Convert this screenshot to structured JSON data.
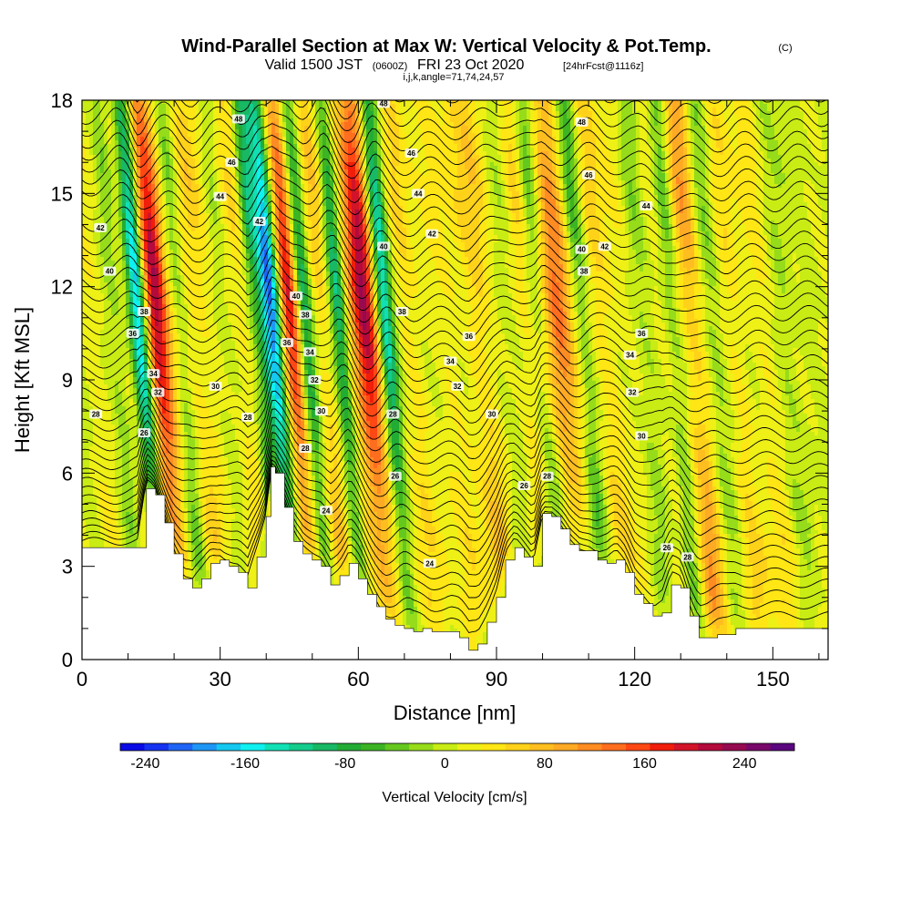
{
  "titles": {
    "main": "Wind-Parallel Section at Max W: Vertical Velocity & Pot.Temp.",
    "copyright": "(C)",
    "valid_prefix": "Valid 1500 JST",
    "utc": "(0600Z)",
    "date": "FRI 23 Oct 2020",
    "forecast": "[24hrFcst@1116z]",
    "indices": "i,j,k,angle=71,74,24,57"
  },
  "chart_data": {
    "type": "heatmap",
    "title": "Wind-Parallel Section at Max W: Vertical Velocity & Pot.Temp.",
    "xlabel": "Distance [nm]",
    "ylabel": "Height [Kft MSL]",
    "xlim": [
      0,
      162
    ],
    "ylim": [
      0,
      18
    ],
    "x_ticks": [
      "0",
      "30",
      "60",
      "90",
      "120",
      "150"
    ],
    "y_ticks": [
      "0",
      "3",
      "6",
      "9",
      "12",
      "15",
      "18"
    ],
    "x_tick_values": [
      0,
      30,
      60,
      90,
      120,
      150
    ],
    "y_tick_values": [
      0,
      3,
      6,
      9,
      12,
      15,
      18
    ],
    "colorbar": {
      "label": "Vertical Velocity [cm/s]",
      "tick_labels": [
        "-240",
        "-160",
        "-80",
        "0",
        "80",
        "160",
        "240"
      ],
      "tick_values": [
        -240,
        -160,
        -80,
        0,
        80,
        160,
        240
      ],
      "range": [
        -260,
        280
      ],
      "colors": [
        "#0a0ae6",
        "#1432f0",
        "#1e64f5",
        "#1e96f5",
        "#14c8f0",
        "#0ff0f0",
        "#10e0b4",
        "#14cc8c",
        "#18b864",
        "#22ac34",
        "#3cb424",
        "#64c81e",
        "#96dc1a",
        "#c8ec14",
        "#eef016",
        "#ffe614",
        "#ffd21a",
        "#ffbe20",
        "#ffaa24",
        "#ff8c22",
        "#ff6e1e",
        "#ff4814",
        "#f01e0a",
        "#d21428",
        "#b40a3c",
        "#960a50",
        "#78086a",
        "#5a067e"
      ]
    },
    "terrain_x_nm": [
      0,
      12,
      14,
      16,
      18,
      20,
      22,
      24,
      26,
      28,
      30,
      32,
      34,
      36,
      38,
      40,
      41,
      42,
      44,
      46,
      48,
      50,
      52,
      54,
      56,
      58,
      60,
      62,
      64,
      66,
      68,
      70,
      72,
      74,
      76,
      78,
      80,
      82,
      84,
      86,
      88,
      90,
      92,
      94,
      96,
      98,
      100,
      102,
      104,
      106,
      108,
      110,
      112,
      114,
      116,
      118,
      120,
      122,
      124,
      126,
      128,
      130,
      132,
      134,
      136,
      138,
      140,
      142,
      144,
      146,
      148,
      150,
      152,
      154,
      156,
      158,
      160,
      162
    ],
    "terrain_kft": [
      3.6,
      3.6,
      5.5,
      5.3,
      4.4,
      3.4,
      2.6,
      2.3,
      2.6,
      3.1,
      3.2,
      3.0,
      2.8,
      2.3,
      3.3,
      4.6,
      6.2,
      6.0,
      4.9,
      3.8,
      3.4,
      3.2,
      3.0,
      2.4,
      2.7,
      3.1,
      2.6,
      2.1,
      1.7,
      1.3,
      1.1,
      1.0,
      0.9,
      1.0,
      0.9,
      0.9,
      0.9,
      0.7,
      0.3,
      0.5,
      1.2,
      2.0,
      3.2,
      3.6,
      3.3,
      3.0,
      4.7,
      4.6,
      4.2,
      3.7,
      3.5,
      3.5,
      3.2,
      3.1,
      3.2,
      2.8,
      2.1,
      1.8,
      1.4,
      1.5,
      2.4,
      2.3,
      1.4,
      0.7,
      0.7,
      0.8,
      0.8,
      1.0,
      1.0,
      1.0,
      1.0,
      1.0,
      1.0,
      1.0,
      1.0,
      1.0,
      1.0,
      1.0
    ],
    "vertical_velocity_bands": [
      {
        "x": 6,
        "w": 3,
        "base": 20
      },
      {
        "x": 10,
        "w": 2,
        "base": -40
      },
      {
        "x": 13,
        "w": 2,
        "base": 30
      },
      {
        "x": 15,
        "w": 2,
        "base": -180
      },
      {
        "x": 19,
        "w": 2.8,
        "base": 190
      },
      {
        "x": 24,
        "w": 2,
        "base": -50
      },
      {
        "x": 28,
        "w": 3,
        "base": 55
      },
      {
        "x": 33,
        "w": 2,
        "base": -25
      },
      {
        "x": 37,
        "w": 3,
        "base": 40
      },
      {
        "x": 40.5,
        "w": 1.8,
        "base": -90
      },
      {
        "x": 44,
        "w": 2.2,
        "base": -200
      },
      {
        "x": 48,
        "w": 2.4,
        "base": 175
      },
      {
        "x": 51,
        "w": 1.8,
        "base": -120
      },
      {
        "x": 55,
        "w": 2.2,
        "base": 60
      },
      {
        "x": 58.5,
        "w": 1.6,
        "base": -110
      },
      {
        "x": 64,
        "w": 2.8,
        "base": 205
      },
      {
        "x": 68.5,
        "w": 1.8,
        "base": -150
      },
      {
        "x": 73,
        "w": 3,
        "base": 35
      },
      {
        "x": 78,
        "w": 3,
        "base": 15
      },
      {
        "x": 84,
        "w": 3.5,
        "base": 30
      },
      {
        "x": 90,
        "w": 3,
        "base": 55
      },
      {
        "x": 95,
        "w": 2.5,
        "base": -25
      },
      {
        "x": 99,
        "w": 2.5,
        "base": 55
      },
      {
        "x": 102,
        "w": 2.2,
        "base": -80
      },
      {
        "x": 106,
        "w": 3.5,
        "base": 120
      },
      {
        "x": 111,
        "w": 2.2,
        "base": -70
      },
      {
        "x": 115,
        "w": 3,
        "base": 40
      },
      {
        "x": 120,
        "w": 3,
        "base": 25
      },
      {
        "x": 124,
        "w": 2.5,
        "base": -35
      },
      {
        "x": 128,
        "w": 2.5,
        "base": 20
      },
      {
        "x": 131,
        "w": 2,
        "base": -60
      },
      {
        "x": 135,
        "w": 3,
        "base": 90
      },
      {
        "x": 139,
        "w": 2.5,
        "base": -40
      },
      {
        "x": 144,
        "w": 3,
        "base": 30
      },
      {
        "x": 150,
        "w": 3.5,
        "base": 25
      },
      {
        "x": 156,
        "w": 3,
        "base": -20
      }
    ],
    "potential_temperature_contours": {
      "unit_note": "",
      "labels": [
        {
          "text": "48",
          "x": 34,
          "y": 17.4
        },
        {
          "text": "46",
          "x": 32.5,
          "y": 16.0
        },
        {
          "text": "44",
          "x": 30,
          "y": 14.9
        },
        {
          "text": "42",
          "x": 4,
          "y": 13.9
        },
        {
          "text": "42",
          "x": 38.5,
          "y": 14.1
        },
        {
          "text": "40",
          "x": 6,
          "y": 12.5
        },
        {
          "text": "38",
          "x": 13.5,
          "y": 11.2
        },
        {
          "text": "36",
          "x": 11,
          "y": 10.5
        },
        {
          "text": "34",
          "x": 15.5,
          "y": 9.2
        },
        {
          "text": "32",
          "x": 16.5,
          "y": 8.6
        },
        {
          "text": "30",
          "x": 29,
          "y": 8.8
        },
        {
          "text": "28",
          "x": 3,
          "y": 7.9
        },
        {
          "text": "28",
          "x": 36,
          "y": 7.8
        },
        {
          "text": "26",
          "x": 13.5,
          "y": 7.3
        },
        {
          "text": "40",
          "x": 46.5,
          "y": 11.7
        },
        {
          "text": "38",
          "x": 48.5,
          "y": 11.1
        },
        {
          "text": "36",
          "x": 44.5,
          "y": 10.2
        },
        {
          "text": "34",
          "x": 49.5,
          "y": 9.9
        },
        {
          "text": "32",
          "x": 50.5,
          "y": 9.0
        },
        {
          "text": "30",
          "x": 52,
          "y": 8.0
        },
        {
          "text": "28",
          "x": 48.5,
          "y": 6.8
        },
        {
          "text": "24",
          "x": 53,
          "y": 4.8
        },
        {
          "text": "48",
          "x": 65.5,
          "y": 17.9
        },
        {
          "text": "46",
          "x": 71.5,
          "y": 16.3
        },
        {
          "text": "44",
          "x": 73,
          "y": 15.0
        },
        {
          "text": "42",
          "x": 76,
          "y": 13.7
        },
        {
          "text": "40",
          "x": 65.5,
          "y": 13.3
        },
        {
          "text": "38",
          "x": 69.5,
          "y": 11.2
        },
        {
          "text": "36",
          "x": 84,
          "y": 10.4
        },
        {
          "text": "34",
          "x": 80,
          "y": 9.6
        },
        {
          "text": "32",
          "x": 81.5,
          "y": 8.8
        },
        {
          "text": "30",
          "x": 89,
          "y": 7.9
        },
        {
          "text": "28",
          "x": 67.5,
          "y": 7.9
        },
        {
          "text": "26",
          "x": 68,
          "y": 5.9
        },
        {
          "text": "24",
          "x": 75.5,
          "y": 3.1
        },
        {
          "text": "26",
          "x": 96,
          "y": 5.6
        },
        {
          "text": "28",
          "x": 101,
          "y": 5.9
        },
        {
          "text": "48",
          "x": 108.5,
          "y": 17.3
        },
        {
          "text": "46",
          "x": 110,
          "y": 15.6
        },
        {
          "text": "44",
          "x": 122.5,
          "y": 14.6
        },
        {
          "text": "42",
          "x": 113.5,
          "y": 13.3
        },
        {
          "text": "40",
          "x": 108.5,
          "y": 13.2
        },
        {
          "text": "38",
          "x": 109,
          "y": 12.5
        },
        {
          "text": "36",
          "x": 121.5,
          "y": 10.5
        },
        {
          "text": "34",
          "x": 119,
          "y": 9.8
        },
        {
          "text": "32",
          "x": 119.5,
          "y": 8.6
        },
        {
          "text": "30",
          "x": 121.5,
          "y": 7.2
        },
        {
          "text": "26",
          "x": 127,
          "y": 3.6
        },
        {
          "text": "28",
          "x": 131.5,
          "y": 3.3
        }
      ]
    }
  }
}
